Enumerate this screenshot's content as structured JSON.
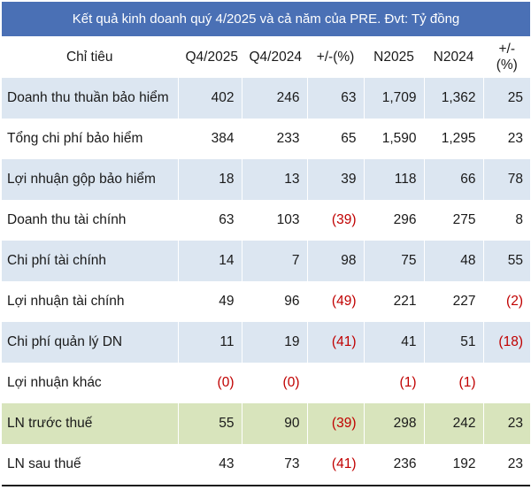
{
  "title": "Kết quả kinh doanh quý 4/2025 và cả năm của PRE. Đvt: Tỷ đồng",
  "headers": [
    "Chỉ tiêu",
    "Q4/2025",
    "Q4/2024",
    "+/-(%)",
    "N2025",
    "N2024",
    "+/-(%)"
  ],
  "rows": [
    {
      "label": "Doanh thu thuần bảo hiểm",
      "values": [
        "402",
        "246",
        "63",
        "1,709",
        "1,362",
        "25"
      ]
    },
    {
      "label": "Tổng chi phí bảo hiểm",
      "values": [
        "384",
        "233",
        "65",
        "1,590",
        "1,295",
        "23"
      ]
    },
    {
      "label": "Lợi nhuận gộp  bảo hiểm",
      "values": [
        "18",
        "13",
        "39",
        "118",
        "66",
        "78"
      ]
    },
    {
      "label": "Doanh thu tài chính",
      "values": [
        "63",
        "103",
        "(39)",
        "296",
        "275",
        "8"
      ]
    },
    {
      "label": "Chi phí tài chính",
      "values": [
        "14",
        "7",
        "98",
        "75",
        "48",
        "55"
      ]
    },
    {
      "label": "Lợi nhuận tài chính",
      "values": [
        "49",
        "96",
        "(49)",
        "221",
        "227",
        "(2)"
      ]
    },
    {
      "label": "Chi phí quản lý DN",
      "values": [
        "11",
        "19",
        "(41)",
        "41",
        "51",
        "(18)"
      ]
    },
    {
      "label": "Lợi nhuận khác",
      "values": [
        "(0)",
        "(0)",
        "",
        "(1)",
        "(1)",
        ""
      ]
    },
    {
      "label": "LN trước thuế",
      "values": [
        "55",
        "90",
        "(39)",
        "298",
        "242",
        "23"
      ]
    },
    {
      "label": "LN sau thuế",
      "values": [
        "43",
        "73",
        "(41)",
        "236",
        "192",
        "23"
      ]
    }
  ],
  "colors": {
    "title_bg": "#4a70b5",
    "row_shade": "#dce6f1",
    "highlight_row": "#d8e4bc",
    "negative": "#c00000"
  }
}
